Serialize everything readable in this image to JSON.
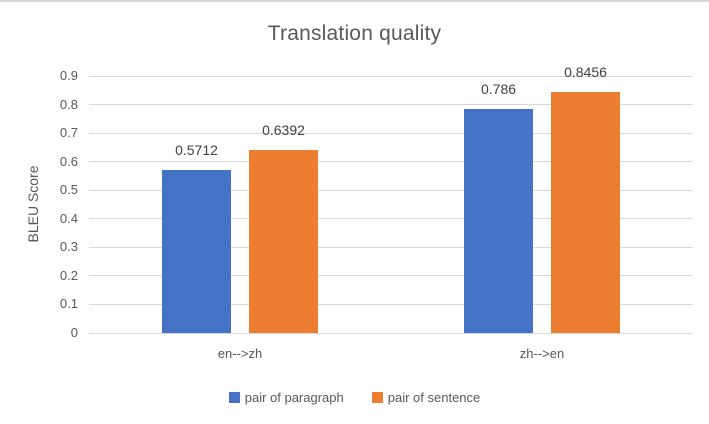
{
  "chart_data": {
    "type": "bar",
    "title": "Translation quality",
    "ylabel": "BLEU Score",
    "xlabel": "",
    "categories": [
      "en-->zh",
      "zh-->en"
    ],
    "series": [
      {
        "name": "pair of paragraph",
        "color": "#4472C4",
        "values": [
          0.5712,
          0.786
        ],
        "value_labels": [
          "0.5712",
          "0.786"
        ]
      },
      {
        "name": "pair of sentence",
        "color": "#ED7D31",
        "values": [
          0.6392,
          0.8456
        ],
        "value_labels": [
          "0.6392",
          "0.8456"
        ]
      }
    ],
    "ylim": [
      0,
      0.9
    ],
    "ytick_step": 0.1,
    "ytick_labels": [
      "0",
      "0.1",
      "0.2",
      "0.3",
      "0.4",
      "0.5",
      "0.6",
      "0.7",
      "0.8",
      "0.9"
    ],
    "grid": true,
    "legend_position": "bottom"
  },
  "colors": {
    "gridline": "#d9d9d9",
    "axis_text": "#595959",
    "title_text": "#595959",
    "data_label_text": "#404040",
    "background": "#ffffff",
    "top_border": "#d6d6d6"
  }
}
